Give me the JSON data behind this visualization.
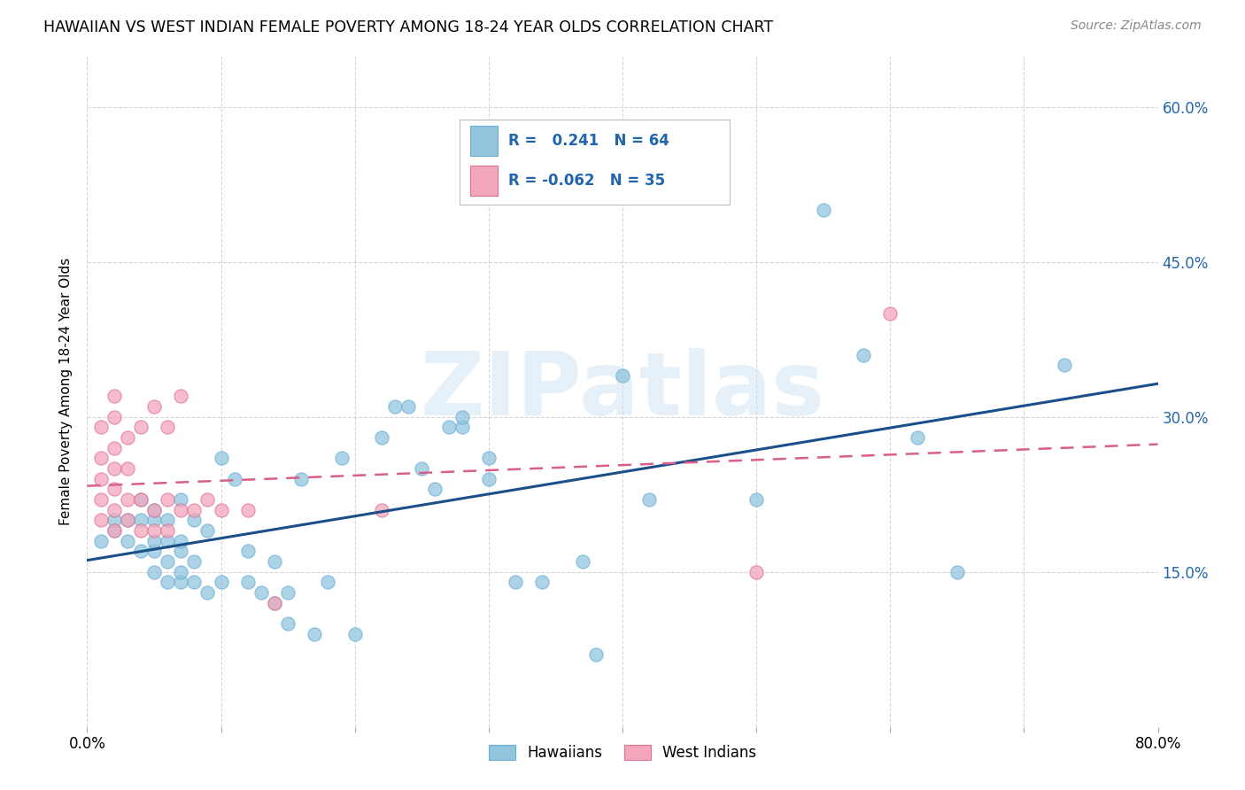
{
  "title": "HAWAIIAN VS WEST INDIAN FEMALE POVERTY AMONG 18-24 YEAR OLDS CORRELATION CHART",
  "source": "Source: ZipAtlas.com",
  "ylabel": "Female Poverty Among 18-24 Year Olds",
  "xlim": [
    0.0,
    0.8
  ],
  "ylim": [
    0.0,
    0.65
  ],
  "xticks": [
    0.0,
    0.1,
    0.2,
    0.3,
    0.4,
    0.5,
    0.6,
    0.7,
    0.8
  ],
  "xticklabels": [
    "0.0%",
    "",
    "",
    "",
    "",
    "",
    "",
    "",
    "80.0%"
  ],
  "ytick_positions": [
    0.15,
    0.3,
    0.45,
    0.6
  ],
  "ytick_labels": [
    "15.0%",
    "30.0%",
    "45.0%",
    "60.0%"
  ],
  "hawaiian_R": 0.241,
  "hawaiian_N": 64,
  "west_indian_R": -0.062,
  "west_indian_N": 35,
  "hawaiian_color": "#92c5de",
  "hawaiian_edge_color": "#6baed6",
  "west_indian_color": "#f4a6bd",
  "west_indian_edge_color": "#e07090",
  "hawaiian_line_color": "#1a4f8a",
  "west_indian_line_color": "#d95f8a",
  "watermark": "ZIPatlas",
  "hawaiian_x": [
    0.01,
    0.02,
    0.02,
    0.03,
    0.03,
    0.04,
    0.04,
    0.04,
    0.05,
    0.05,
    0.05,
    0.05,
    0.05,
    0.06,
    0.06,
    0.06,
    0.06,
    0.07,
    0.07,
    0.07,
    0.07,
    0.07,
    0.08,
    0.08,
    0.08,
    0.09,
    0.09,
    0.1,
    0.1,
    0.11,
    0.12,
    0.12,
    0.13,
    0.14,
    0.14,
    0.15,
    0.15,
    0.16,
    0.17,
    0.18,
    0.19,
    0.2,
    0.22,
    0.23,
    0.24,
    0.25,
    0.26,
    0.27,
    0.28,
    0.28,
    0.3,
    0.3,
    0.32,
    0.34,
    0.37,
    0.38,
    0.4,
    0.42,
    0.5,
    0.55,
    0.58,
    0.62,
    0.65,
    0.73
  ],
  "hawaiian_y": [
    0.18,
    0.19,
    0.2,
    0.18,
    0.2,
    0.17,
    0.2,
    0.22,
    0.15,
    0.17,
    0.18,
    0.2,
    0.21,
    0.14,
    0.16,
    0.18,
    0.2,
    0.14,
    0.15,
    0.17,
    0.18,
    0.22,
    0.14,
    0.16,
    0.2,
    0.13,
    0.19,
    0.14,
    0.26,
    0.24,
    0.14,
    0.17,
    0.13,
    0.12,
    0.16,
    0.1,
    0.13,
    0.24,
    0.09,
    0.14,
    0.26,
    0.09,
    0.28,
    0.31,
    0.31,
    0.25,
    0.23,
    0.29,
    0.29,
    0.3,
    0.24,
    0.26,
    0.14,
    0.14,
    0.16,
    0.07,
    0.34,
    0.22,
    0.22,
    0.5,
    0.36,
    0.28,
    0.15,
    0.35
  ],
  "west_indian_x": [
    0.01,
    0.01,
    0.01,
    0.01,
    0.01,
    0.02,
    0.02,
    0.02,
    0.02,
    0.02,
    0.02,
    0.02,
    0.03,
    0.03,
    0.03,
    0.03,
    0.04,
    0.04,
    0.04,
    0.05,
    0.05,
    0.05,
    0.06,
    0.06,
    0.06,
    0.07,
    0.07,
    0.08,
    0.09,
    0.1,
    0.12,
    0.14,
    0.22,
    0.5,
    0.6
  ],
  "west_indian_y": [
    0.2,
    0.22,
    0.24,
    0.26,
    0.29,
    0.19,
    0.21,
    0.23,
    0.25,
    0.27,
    0.3,
    0.32,
    0.2,
    0.22,
    0.25,
    0.28,
    0.19,
    0.22,
    0.29,
    0.19,
    0.21,
    0.31,
    0.19,
    0.22,
    0.29,
    0.21,
    0.32,
    0.21,
    0.22,
    0.21,
    0.21,
    0.12,
    0.21,
    0.15,
    0.4
  ]
}
